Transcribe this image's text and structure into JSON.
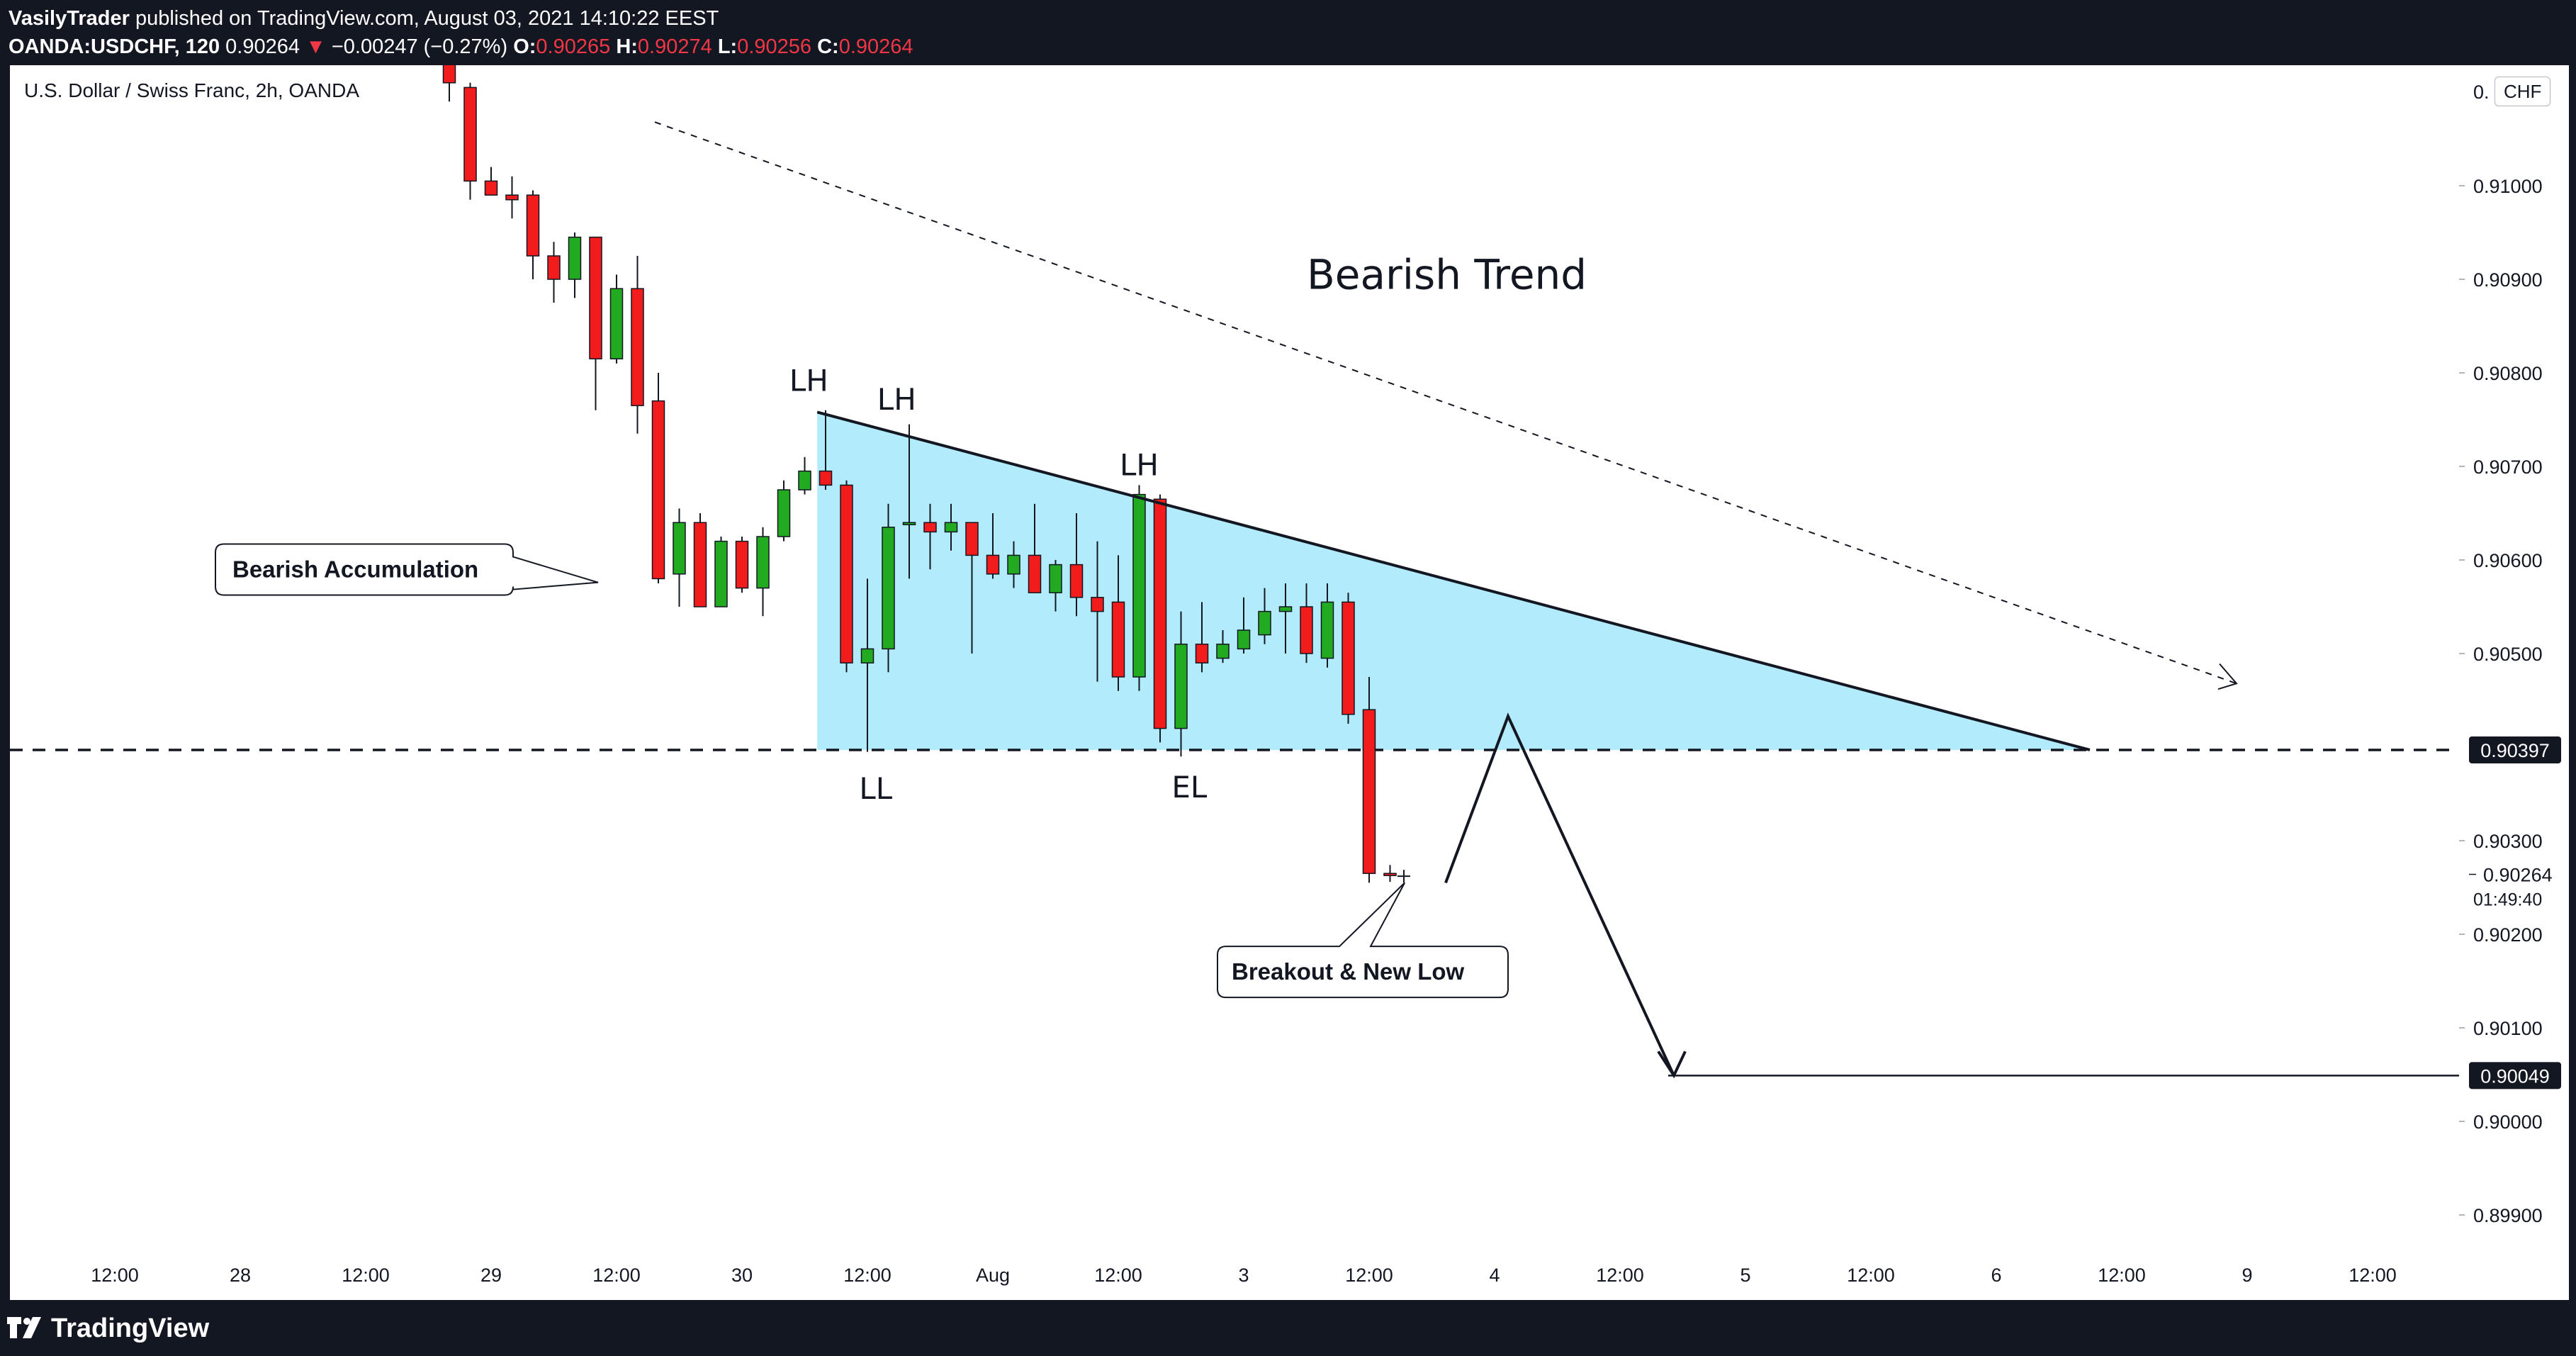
{
  "header": {
    "author": "VasilyTrader",
    "published": "published on TradingView.com, August 03, 2021 14:10:22 EEST",
    "ticker": "OANDA:USDCHF, 120",
    "last_price": "0.90264",
    "change_arrow": "▼",
    "change": "−0.00247 (−0.27%)",
    "o_label": "O:",
    "o_value": "0.90265",
    "h_label": "H:",
    "h_value": "0.90274",
    "l_label": "L:",
    "l_value": "0.90256",
    "c_label": "C:",
    "c_value": "0.90264"
  },
  "symbol_title": "U.S. Dollar / Swiss Franc, 2h, OANDA",
  "currency_button": "CHF",
  "top_price_label": "0.",
  "colors": {
    "up": "#22ab20",
    "down": "#f21c1c",
    "triangle_fill": "#b2ebfb",
    "header_bg": "#131722",
    "marker_bg": "#131722"
  },
  "footer": {
    "logo_text": "TradingView",
    "logo_icon": "tradingview-logo-icon"
  },
  "chart_data": {
    "type": "candlestick",
    "title": "U.S. Dollar / Swiss Franc, 2h, OANDA",
    "y_axis": {
      "range": [
        0.8985,
        0.9118
      ],
      "ticks": [
        "0.91000",
        "0.90900",
        "0.90800",
        "0.90700",
        "0.90600",
        "0.90500",
        "0.90300",
        "0.90200",
        "0.90100",
        "0.90000",
        "0.89900"
      ],
      "tick_values": [
        0.91,
        0.909,
        0.908,
        0.907,
        0.906,
        0.905,
        0.903,
        0.902,
        0.901,
        0.9,
        0.899
      ]
    },
    "x_axis": {
      "labels": [
        "12:00",
        "28",
        "12:00",
        "29",
        "12:00",
        "30",
        "12:00",
        "Aug",
        "12:00",
        "3",
        "12:00",
        "4",
        "12:00",
        "5",
        "12:00",
        "6",
        "12:00",
        "9",
        "12:00"
      ],
      "label_bar_index": [
        -16,
        -10,
        -4,
        2,
        8,
        14,
        20,
        26,
        32,
        38,
        44,
        50,
        56,
        62,
        68,
        74,
        80,
        86,
        92
      ]
    },
    "candles": [
      {
        "o": 0.91165,
        "h": 0.91205,
        "l": 0.9109,
        "c": 0.9111
      },
      {
        "o": 0.91105,
        "h": 0.9111,
        "l": 0.90985,
        "c": 0.91005
      },
      {
        "o": 0.91005,
        "h": 0.9102,
        "l": 0.9099,
        "c": 0.9099
      },
      {
        "o": 0.9099,
        "h": 0.9101,
        "l": 0.90965,
        "c": 0.90985
      },
      {
        "o": 0.9099,
        "h": 0.90995,
        "l": 0.909,
        "c": 0.90925
      },
      {
        "o": 0.90925,
        "h": 0.9094,
        "l": 0.90875,
        "c": 0.909
      },
      {
        "o": 0.909,
        "h": 0.9095,
        "l": 0.9088,
        "c": 0.90945
      },
      {
        "o": 0.90945,
        "h": 0.90945,
        "l": 0.9076,
        "c": 0.90815
      },
      {
        "o": 0.90815,
        "h": 0.90905,
        "l": 0.9081,
        "c": 0.9089
      },
      {
        "o": 0.9089,
        "h": 0.90925,
        "l": 0.90735,
        "c": 0.90765
      },
      {
        "o": 0.9077,
        "h": 0.908,
        "l": 0.90575,
        "c": 0.9058
      },
      {
        "o": 0.90585,
        "h": 0.90655,
        "l": 0.9055,
        "c": 0.9064
      },
      {
        "o": 0.9064,
        "h": 0.9065,
        "l": 0.9055,
        "c": 0.9055
      },
      {
        "o": 0.9055,
        "h": 0.90625,
        "l": 0.9055,
        "c": 0.9062
      },
      {
        "o": 0.9062,
        "h": 0.90625,
        "l": 0.90565,
        "c": 0.9057
      },
      {
        "o": 0.9057,
        "h": 0.90635,
        "l": 0.9054,
        "c": 0.90625
      },
      {
        "o": 0.90625,
        "h": 0.90685,
        "l": 0.9062,
        "c": 0.90675
      },
      {
        "o": 0.90675,
        "h": 0.9071,
        "l": 0.9067,
        "c": 0.90695
      },
      {
        "o": 0.90695,
        "h": 0.9076,
        "l": 0.90675,
        "c": 0.9068
      },
      {
        "o": 0.9068,
        "h": 0.90685,
        "l": 0.9048,
        "c": 0.9049
      },
      {
        "o": 0.9049,
        "h": 0.9058,
        "l": 0.90395,
        "c": 0.90505
      },
      {
        "o": 0.90505,
        "h": 0.9066,
        "l": 0.9048,
        "c": 0.90635
      },
      {
        "o": 0.9064,
        "h": 0.90745,
        "l": 0.9058,
        "c": 0.9064
      },
      {
        "o": 0.9064,
        "h": 0.9066,
        "l": 0.9059,
        "c": 0.9063
      },
      {
        "o": 0.9063,
        "h": 0.9066,
        "l": 0.9061,
        "c": 0.9064
      },
      {
        "o": 0.9064,
        "h": 0.9064,
        "l": 0.905,
        "c": 0.90605
      },
      {
        "o": 0.90605,
        "h": 0.9065,
        "l": 0.9058,
        "c": 0.90585
      },
      {
        "o": 0.90585,
        "h": 0.9062,
        "l": 0.9057,
        "c": 0.90605
      },
      {
        "o": 0.90605,
        "h": 0.9066,
        "l": 0.90565,
        "c": 0.90565
      },
      {
        "o": 0.90565,
        "h": 0.906,
        "l": 0.90545,
        "c": 0.90595
      },
      {
        "o": 0.90595,
        "h": 0.9065,
        "l": 0.9054,
        "c": 0.9056
      },
      {
        "o": 0.9056,
        "h": 0.9062,
        "l": 0.9047,
        "c": 0.90545
      },
      {
        "o": 0.90555,
        "h": 0.90605,
        "l": 0.9046,
        "c": 0.90475
      },
      {
        "o": 0.90475,
        "h": 0.9068,
        "l": 0.9046,
        "c": 0.9067
      },
      {
        "o": 0.90665,
        "h": 0.9067,
        "l": 0.90405,
        "c": 0.9042
      },
      {
        "o": 0.9042,
        "h": 0.90545,
        "l": 0.9039,
        "c": 0.9051
      },
      {
        "o": 0.9051,
        "h": 0.90555,
        "l": 0.9048,
        "c": 0.9049
      },
      {
        "o": 0.90495,
        "h": 0.90525,
        "l": 0.9049,
        "c": 0.9051
      },
      {
        "o": 0.90505,
        "h": 0.9056,
        "l": 0.905,
        "c": 0.90525
      },
      {
        "o": 0.9052,
        "h": 0.9057,
        "l": 0.9051,
        "c": 0.90545
      },
      {
        "o": 0.90545,
        "h": 0.90575,
        "l": 0.905,
        "c": 0.9055
      },
      {
        "o": 0.9055,
        "h": 0.90575,
        "l": 0.9049,
        "c": 0.905
      },
      {
        "o": 0.90495,
        "h": 0.90575,
        "l": 0.90485,
        "c": 0.90555
      },
      {
        "o": 0.90555,
        "h": 0.90565,
        "l": 0.90425,
        "c": 0.90435
      },
      {
        "o": 0.9044,
        "h": 0.90475,
        "l": 0.90255,
        "c": 0.90265
      },
      {
        "o": 0.90265,
        "h": 0.90274,
        "l": 0.90256,
        "c": 0.90264
      }
    ],
    "price_lines": [
      {
        "value": 0.90397,
        "label": "0.90397",
        "style": "dashed"
      },
      {
        "value": 0.90049,
        "label": "0.90049",
        "style": "solid"
      }
    ],
    "current_price": {
      "label": "0.90264",
      "countdown": "01:49:40"
    },
    "annotations": [
      {
        "text": "Bearish Trend",
        "kind": "title"
      },
      {
        "text": "LH",
        "kind": "label"
      },
      {
        "text": "LH",
        "kind": "label"
      },
      {
        "text": "LH",
        "kind": "label"
      },
      {
        "text": "LL",
        "kind": "label"
      },
      {
        "text": "EL",
        "kind": "label"
      },
      {
        "text": "Bearish Accumulation",
        "kind": "callout"
      },
      {
        "text": "Breakout & New Low",
        "kind": "callout"
      }
    ],
    "pattern": "descending triangle",
    "grid": false
  }
}
